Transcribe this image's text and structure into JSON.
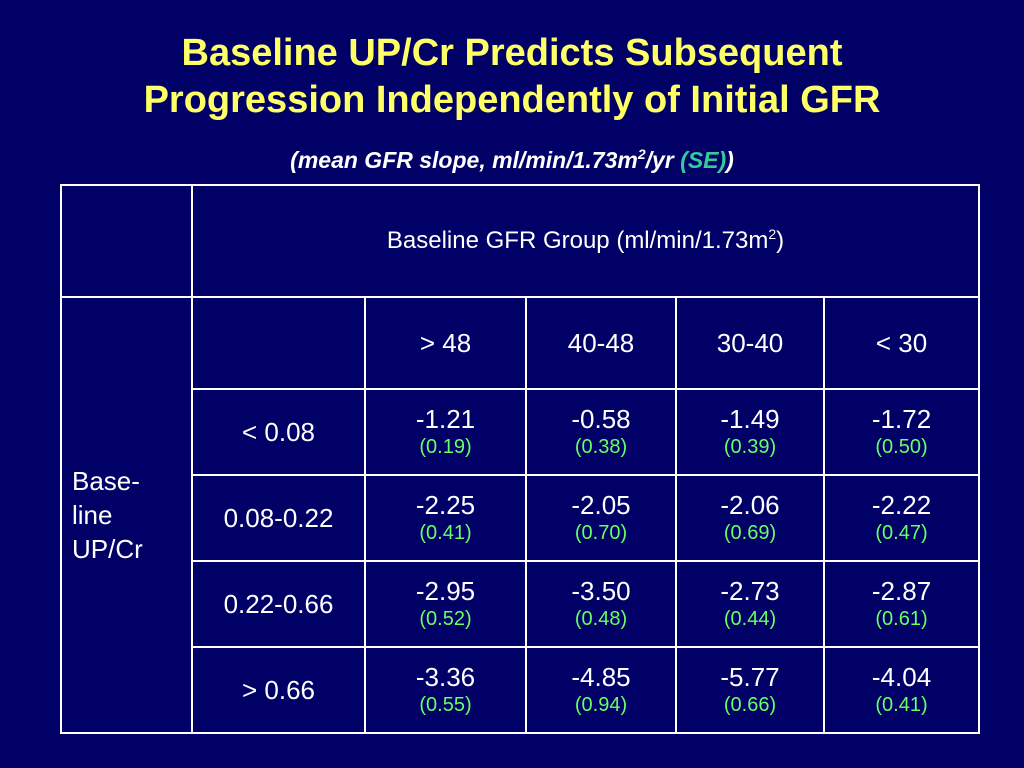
{
  "title_line1": "Baseline UP/Cr Predicts Subsequent",
  "title_line2": "Progression Independently of Initial GFR",
  "subtitle": {
    "prefix": "(mean GFR slope, ml/min/1.73m",
    "sup": "2",
    "mid": "/yr ",
    "se": "(SE)",
    "suffix": ")"
  },
  "table": {
    "group_header": "Baseline GFR Group (ml/min/1.73m",
    "group_header_sup": "2",
    "group_header_close": ")",
    "side_label": [
      "Base-",
      "line",
      "UP/Cr"
    ],
    "columns": [
      "> 48",
      "40-48",
      "30-40",
      "< 30"
    ],
    "rows": [
      {
        "label": "< 0.08",
        "cells": [
          {
            "v": "-1.21",
            "se": "(0.19)"
          },
          {
            "v": "-0.58",
            "se": "(0.38)"
          },
          {
            "v": "-1.49",
            "se": "(0.39)"
          },
          {
            "v": "-1.72",
            "se": "(0.50)"
          }
        ]
      },
      {
        "label": "0.08-0.22",
        "cells": [
          {
            "v": "-2.25",
            "se": "(0.41)"
          },
          {
            "v": "-2.05",
            "se": "(0.70)"
          },
          {
            "v": "-2.06",
            "se": "(0.69)"
          },
          {
            "v": "-2.22",
            "se": "(0.47)"
          }
        ]
      },
      {
        "label": "0.22-0.66",
        "cells": [
          {
            "v": "-2.95",
            "se": "(0.52)"
          },
          {
            "v": "-3.50",
            "se": "(0.48)"
          },
          {
            "v": "-2.73",
            "se": "(0.44)"
          },
          {
            "v": "-2.87",
            "se": "(0.61)"
          }
        ]
      },
      {
        "label": "> 0.66",
        "cells": [
          {
            "v": "-3.36",
            "se": "(0.55)"
          },
          {
            "v": "-4.85",
            "se": "(0.94)"
          },
          {
            "v": "-5.77",
            "se": "(0.66)"
          },
          {
            "v": "-4.04",
            "se": "(0.41)"
          }
        ]
      }
    ]
  },
  "colors": {
    "background": "#000066",
    "title": "#ffff66",
    "se_accent": "#33cc99",
    "se_values": "#66ff66"
  }
}
